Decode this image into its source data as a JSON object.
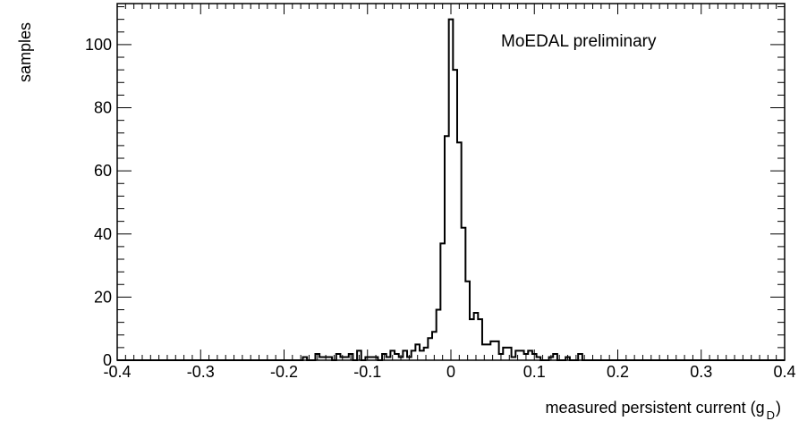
{
  "chart_data": {
    "type": "bar",
    "title": "",
    "annotation": "MoEDAL preliminary",
    "xlabel": {
      "main": "measured persistent current (g",
      "subscript": "D",
      "close": ")"
    },
    "ylabel": "samples",
    "xlim": [
      -0.4,
      0.4
    ],
    "ylim": [
      0,
      113
    ],
    "x_ticks": [
      -0.4,
      -0.3,
      -0.2,
      -0.1,
      0,
      0.1,
      0.2,
      0.3,
      0.4
    ],
    "x_tick_labels": [
      "-0.4",
      "-0.3",
      "-0.2",
      "-0.1",
      "0",
      "0.1",
      "0.2",
      "0.3",
      "0.4"
    ],
    "y_ticks": [
      0,
      20,
      40,
      60,
      80,
      100
    ],
    "y_tick_labels": [
      "0",
      "20",
      "40",
      "60",
      "80",
      "100"
    ],
    "bin_width": 0.005,
    "bins": [
      {
        "x": -0.175,
        "y": 1
      },
      {
        "x": -0.16,
        "y": 2
      },
      {
        "x": -0.155,
        "y": 1
      },
      {
        "x": -0.15,
        "y": 1
      },
      {
        "x": -0.145,
        "y": 1
      },
      {
        "x": -0.135,
        "y": 2
      },
      {
        "x": -0.13,
        "y": 1
      },
      {
        "x": -0.125,
        "y": 1
      },
      {
        "x": -0.12,
        "y": 2
      },
      {
        "x": -0.11,
        "y": 3
      },
      {
        "x": -0.1,
        "y": 1
      },
      {
        "x": -0.095,
        "y": 1
      },
      {
        "x": -0.09,
        "y": 1
      },
      {
        "x": -0.08,
        "y": 2
      },
      {
        "x": -0.075,
        "y": 1
      },
      {
        "x": -0.07,
        "y": 3
      },
      {
        "x": -0.065,
        "y": 2
      },
      {
        "x": -0.06,
        "y": 1
      },
      {
        "x": -0.055,
        "y": 3
      },
      {
        "x": -0.05,
        "y": 1
      },
      {
        "x": -0.045,
        "y": 3
      },
      {
        "x": -0.04,
        "y": 5
      },
      {
        "x": -0.035,
        "y": 3
      },
      {
        "x": -0.03,
        "y": 4
      },
      {
        "x": -0.025,
        "y": 7
      },
      {
        "x": -0.02,
        "y": 9
      },
      {
        "x": -0.015,
        "y": 16
      },
      {
        "x": -0.01,
        "y": 37
      },
      {
        "x": -0.005,
        "y": 71
      },
      {
        "x": 0,
        "y": 108
      },
      {
        "x": 0.005,
        "y": 92
      },
      {
        "x": 0.01,
        "y": 69
      },
      {
        "x": 0.015,
        "y": 42
      },
      {
        "x": 0.02,
        "y": 25
      },
      {
        "x": 0.025,
        "y": 13
      },
      {
        "x": 0.03,
        "y": 15
      },
      {
        "x": 0.035,
        "y": 13
      },
      {
        "x": 0.04,
        "y": 5
      },
      {
        "x": 0.045,
        "y": 5
      },
      {
        "x": 0.05,
        "y": 6
      },
      {
        "x": 0.055,
        "y": 6
      },
      {
        "x": 0.06,
        "y": 2
      },
      {
        "x": 0.065,
        "y": 4
      },
      {
        "x": 0.07,
        "y": 4
      },
      {
        "x": 0.075,
        "y": 1
      },
      {
        "x": 0.08,
        "y": 3
      },
      {
        "x": 0.085,
        "y": 3
      },
      {
        "x": 0.09,
        "y": 2
      },
      {
        "x": 0.095,
        "y": 3
      },
      {
        "x": 0.1,
        "y": 2
      },
      {
        "x": 0.105,
        "y": 1
      },
      {
        "x": 0.12,
        "y": 1
      },
      {
        "x": 0.125,
        "y": 2
      },
      {
        "x": 0.14,
        "y": 1
      },
      {
        "x": 0.155,
        "y": 2
      }
    ],
    "grid": false,
    "legend": "none",
    "colors": {
      "line": "#000000",
      "frame": "#000000",
      "background": "#ffffff"
    }
  }
}
